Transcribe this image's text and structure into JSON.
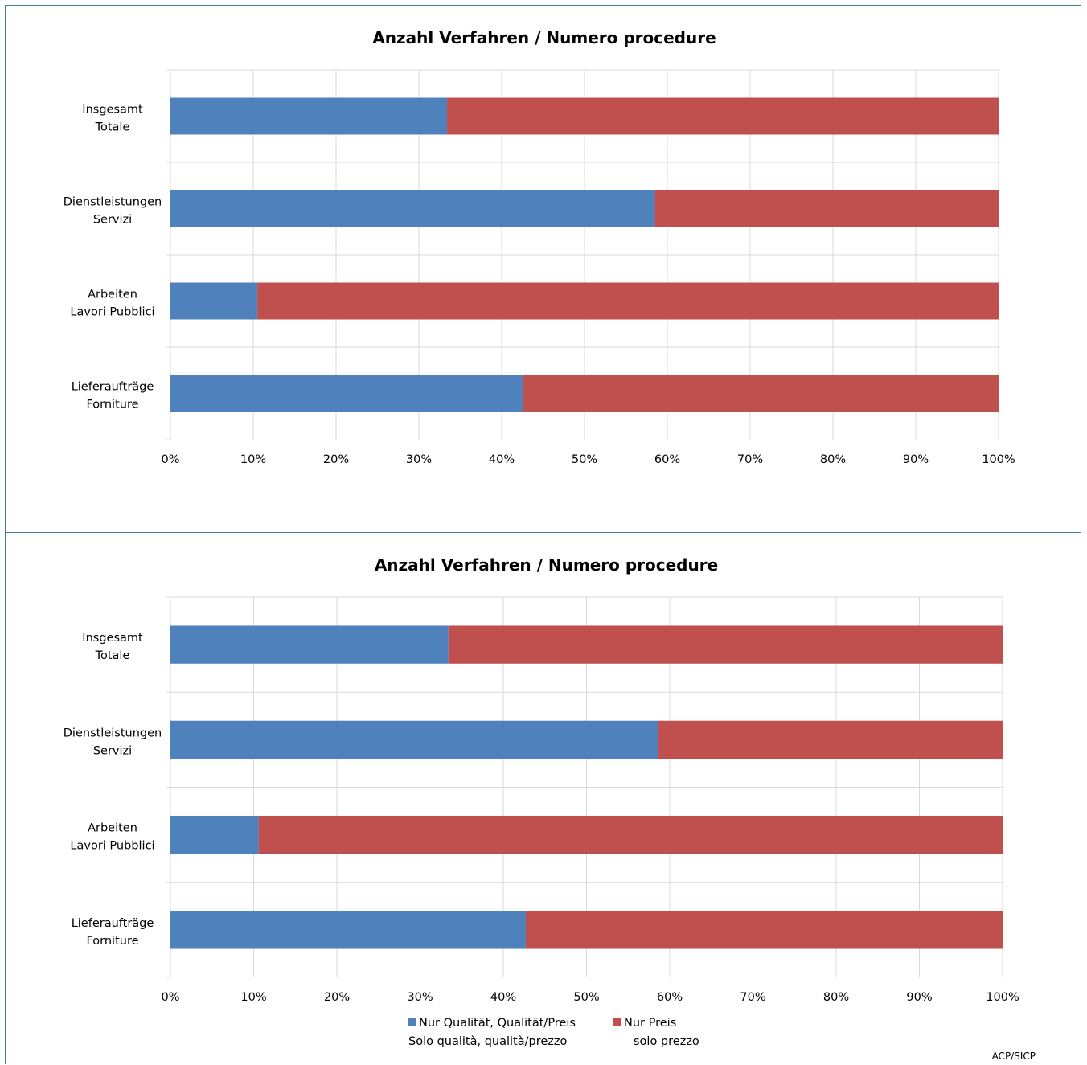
{
  "chart_data": [
    {
      "type": "bar",
      "orientation": "horizontal",
      "stacked": "percent",
      "title": "Anzahl Verfahren / Numero procedure",
      "categories": [
        [
          "Insgesamt",
          "Totale"
        ],
        [
          "Dienstleistungen",
          "Servizi"
        ],
        [
          "Arbeiten",
          "Lavori Pubblici"
        ],
        [
          "Lieferaufträge",
          "Forniture"
        ]
      ],
      "series": [
        {
          "values": [
            33.4,
            58.5,
            10.5,
            42.6
          ]
        },
        {
          "values": [
            66.6,
            41.5,
            89.5,
            57.4
          ]
        }
      ],
      "xlim": [
        0,
        100
      ],
      "xticks": [
        "0%",
        "10%",
        "20%",
        "30%",
        "40%",
        "50%",
        "60%",
        "70%",
        "80%",
        "90%",
        "100%"
      ],
      "grid": true
    },
    {
      "type": "bar",
      "orientation": "horizontal",
      "stacked": "percent",
      "title": "Anzahl Verfahren / Numero procedure",
      "categories": [
        [
          "Insgesamt",
          "Totale"
        ],
        [
          "Dienstleistungen",
          "Servizi"
        ],
        [
          "Arbeiten",
          "Lavori Pubblici"
        ],
        [
          "Lieferaufträge",
          "Forniture"
        ]
      ],
      "series": [
        {
          "name": [
            "Nur Qualität, Qualität/Preis",
            "Solo qualità,  qualità/prezzo"
          ],
          "values": [
            33.4,
            58.6,
            10.6,
            42.7
          ]
        },
        {
          "name": [
            "Nur Preis",
            "solo prezzo"
          ],
          "values": [
            66.6,
            41.4,
            89.4,
            57.3
          ]
        }
      ],
      "xlim": [
        0,
        100
      ],
      "xticks": [
        "0%",
        "10%",
        "20%",
        "30%",
        "40%",
        "50%",
        "60%",
        "70%",
        "80%",
        "90%",
        "100%"
      ],
      "grid": true,
      "legend": "bottom"
    }
  ],
  "colors": {
    "series_1": "#4f81bd",
    "series_2": "#c0504d",
    "grid": "#d9d9d9",
    "border": "#3f7f8f"
  },
  "source": "ACP/SICP"
}
